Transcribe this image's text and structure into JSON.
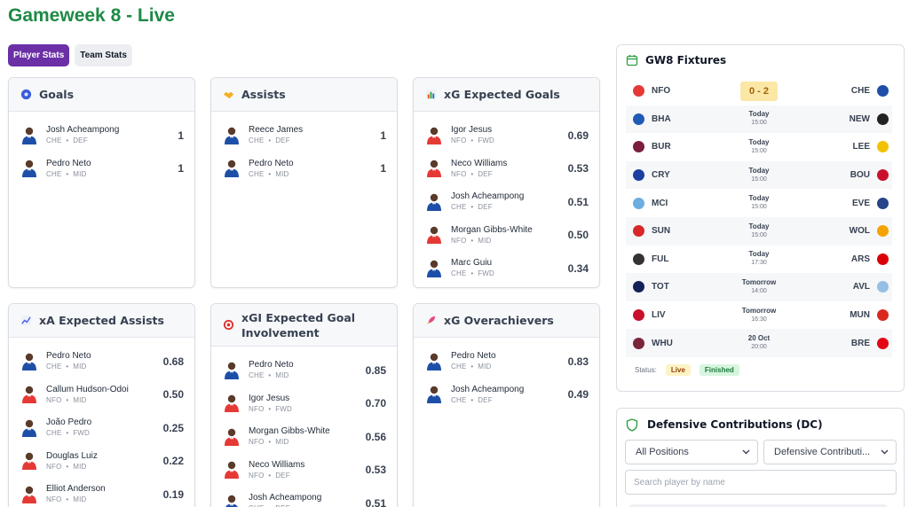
{
  "page": {
    "title": "Gameweek 8 - Live"
  },
  "tabs": [
    {
      "label": "Player Stats",
      "active": true
    },
    {
      "label": "Team Stats",
      "active": false
    }
  ],
  "cards": {
    "goals": {
      "title": "Goals",
      "icon": "football-icon",
      "rows": [
        {
          "name": "Josh Acheampong",
          "team": "CHE",
          "pos": "DEF",
          "value": "1"
        },
        {
          "name": "Pedro Neto",
          "team": "CHE",
          "pos": "MID",
          "value": "1"
        }
      ]
    },
    "assists": {
      "title": "Assists",
      "icon": "handshake-icon",
      "rows": [
        {
          "name": "Reece James",
          "team": "CHE",
          "pos": "DEF",
          "value": "1"
        },
        {
          "name": "Pedro Neto",
          "team": "CHE",
          "pos": "MID",
          "value": "1"
        }
      ]
    },
    "xg": {
      "title": "xG Expected Goals",
      "icon": "bar-chart-icon",
      "rows": [
        {
          "name": "Igor Jesus",
          "team": "NFO",
          "pos": "FWD",
          "value": "0.69"
        },
        {
          "name": "Neco Williams",
          "team": "NFO",
          "pos": "DEF",
          "value": "0.53"
        },
        {
          "name": "Josh Acheampong",
          "team": "CHE",
          "pos": "DEF",
          "value": "0.51"
        },
        {
          "name": "Morgan Gibbs-White",
          "team": "NFO",
          "pos": "MID",
          "value": "0.50"
        },
        {
          "name": "Marc Guiu",
          "team": "CHE",
          "pos": "FWD",
          "value": "0.34"
        }
      ]
    },
    "xa": {
      "title": "xA Expected Assists",
      "icon": "trend-chart-icon",
      "rows": [
        {
          "name": "Pedro Neto",
          "team": "CHE",
          "pos": "MID",
          "value": "0.68"
        },
        {
          "name": "Callum Hudson-Odoi",
          "team": "NFO",
          "pos": "MID",
          "value": "0.50"
        },
        {
          "name": "João Pedro",
          "team": "CHE",
          "pos": "FWD",
          "value": "0.25"
        },
        {
          "name": "Douglas Luiz",
          "team": "NFO",
          "pos": "MID",
          "value": "0.22"
        },
        {
          "name": "Elliot Anderson",
          "team": "NFO",
          "pos": "MID",
          "value": "0.19"
        }
      ]
    },
    "xgi": {
      "title": "xGI Expected Goal Involvement",
      "icon": "target-icon",
      "rows": [
        {
          "name": "Pedro Neto",
          "team": "CHE",
          "pos": "MID",
          "value": "0.85"
        },
        {
          "name": "Igor Jesus",
          "team": "NFO",
          "pos": "FWD",
          "value": "0.70"
        },
        {
          "name": "Morgan Gibbs-White",
          "team": "NFO",
          "pos": "MID",
          "value": "0.56"
        },
        {
          "name": "Neco Williams",
          "team": "NFO",
          "pos": "DEF",
          "value": "0.53"
        },
        {
          "name": "Josh Acheampong",
          "team": "CHE",
          "pos": "DEF",
          "value": "0.51"
        }
      ]
    },
    "xgo": {
      "title": "xG Overachievers",
      "icon": "rocket-icon",
      "rows": [
        {
          "name": "Pedro Neto",
          "team": "CHE",
          "pos": "MID",
          "value": "0.83"
        },
        {
          "name": "Josh Acheampong",
          "team": "CHE",
          "pos": "DEF",
          "value": "0.49"
        }
      ]
    }
  },
  "fixtures": {
    "title": "GW8 Fixtures",
    "rows": [
      {
        "home": "NFO",
        "away": "CHE",
        "score": "0 - 2",
        "day": "",
        "time": "",
        "homeColor": "#e53935",
        "awayColor": "#1e4fa8"
      },
      {
        "home": "BHA",
        "away": "NEW",
        "score": "",
        "day": "Today",
        "time": "15:00",
        "homeColor": "#1f5bb6",
        "awayColor": "#222222"
      },
      {
        "home": "BUR",
        "away": "LEE",
        "score": "",
        "day": "Today",
        "time": "15:00",
        "homeColor": "#7a1f3d",
        "awayColor": "#f2c200"
      },
      {
        "home": "CRY",
        "away": "BOU",
        "score": "",
        "day": "Today",
        "time": "15:00",
        "homeColor": "#1b3fa0",
        "awayColor": "#c8102e"
      },
      {
        "home": "MCI",
        "away": "EVE",
        "score": "",
        "day": "Today",
        "time": "15:00",
        "homeColor": "#6caee0",
        "awayColor": "#274488"
      },
      {
        "home": "SUN",
        "away": "WOL",
        "score": "",
        "day": "Today",
        "time": "15:00",
        "homeColor": "#d62828",
        "awayColor": "#f5a300"
      },
      {
        "home": "FUL",
        "away": "ARS",
        "score": "",
        "day": "Today",
        "time": "17:30",
        "homeColor": "#333333",
        "awayColor": "#db0007"
      },
      {
        "home": "TOT",
        "away": "AVL",
        "score": "",
        "day": "Tomorrow",
        "time": "14:00",
        "homeColor": "#132257",
        "awayColor": "#95bfe5"
      },
      {
        "home": "LIV",
        "away": "MUN",
        "score": "",
        "day": "Tomorrow",
        "time": "16:30",
        "homeColor": "#c8102e",
        "awayColor": "#da291c"
      },
      {
        "home": "WHU",
        "away": "BRE",
        "score": "",
        "day": "20 Oct",
        "time": "20:00",
        "homeColor": "#7a263a",
        "awayColor": "#e30613"
      }
    ],
    "status_label": "Status:",
    "badges": [
      "Live",
      "Finished"
    ]
  },
  "dc": {
    "title": "Defensive Contributions (DC)",
    "position_select": "All Positions",
    "stat_select": "Defensive Contributi...",
    "search_placeholder": "Search player by name"
  },
  "colors": {
    "accent": "#6b2fa6",
    "title_green": "#1e8a46",
    "che_kit": "#1e4fa8",
    "nfo_kit": "#e53935"
  }
}
